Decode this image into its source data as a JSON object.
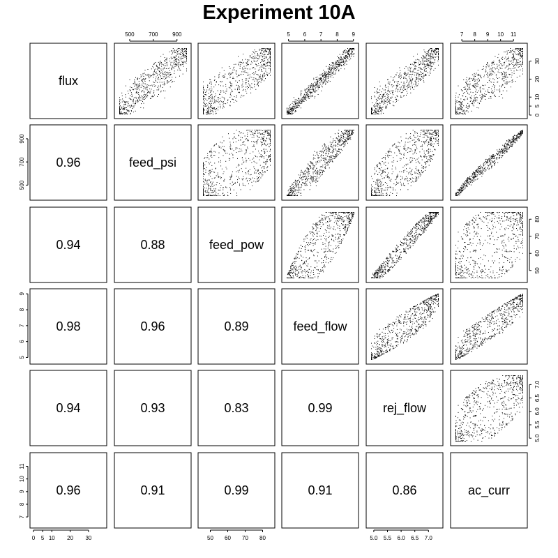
{
  "title": "Experiment 10A",
  "chart_data": {
    "type": "scatter",
    "kind": "scatterplot-matrix",
    "title": "Experiment 10A",
    "grid": false,
    "variables": [
      "flux",
      "feed_psi",
      "feed_pow",
      "feed_flow",
      "rej_flow",
      "ac_curr"
    ],
    "ranges": {
      "flux": [
        0,
        38
      ],
      "feed_psi": [
        400,
        990
      ],
      "feed_pow": [
        45,
        85
      ],
      "feed_flow": [
        4.8,
        9.1
      ],
      "rej_flow": [
        4.85,
        7.4
      ],
      "ac_curr": [
        6.4,
        11.8
      ]
    },
    "ticks": {
      "flux": [
        0,
        5,
        10,
        20,
        30
      ],
      "feed_psi": [
        500,
        700,
        900
      ],
      "feed_pow": [
        50,
        60,
        70,
        80
      ],
      "feed_flow": [
        5,
        6,
        7,
        8,
        9
      ],
      "rej_flow": [
        5.0,
        5.5,
        6.0,
        6.5,
        7.0
      ],
      "ac_curr": [
        7,
        8,
        9,
        10,
        11
      ]
    },
    "tick_labels": {
      "flux": [
        "0",
        "5",
        "10",
        "20",
        "30"
      ],
      "feed_psi": [
        "500",
        "700",
        "900"
      ],
      "feed_pow": [
        "50",
        "60",
        "70",
        "80"
      ],
      "feed_flow": [
        "5",
        "6",
        "7",
        "8",
        "9"
      ],
      "rej_flow": [
        "5.0",
        "5.5",
        "6.0",
        "6.5",
        "7.0"
      ],
      "ac_curr": [
        "7",
        "8",
        "9",
        "10",
        "11"
      ]
    },
    "correlations": [
      {
        "row": "feed_psi",
        "col": "flux",
        "value": "0.96"
      },
      {
        "row": "feed_pow",
        "col": "flux",
        "value": "0.94"
      },
      {
        "row": "feed_pow",
        "col": "feed_psi",
        "value": "0.88"
      },
      {
        "row": "feed_flow",
        "col": "flux",
        "value": "0.98"
      },
      {
        "row": "feed_flow",
        "col": "feed_psi",
        "value": "0.96"
      },
      {
        "row": "feed_flow",
        "col": "feed_pow",
        "value": "0.89"
      },
      {
        "row": "rej_flow",
        "col": "flux",
        "value": "0.94"
      },
      {
        "row": "rej_flow",
        "col": "feed_psi",
        "value": "0.93"
      },
      {
        "row": "rej_flow",
        "col": "feed_pow",
        "value": "0.83"
      },
      {
        "row": "rej_flow",
        "col": "feed_flow",
        "value": "0.99"
      },
      {
        "row": "ac_curr",
        "col": "flux",
        "value": "0.96"
      },
      {
        "row": "ac_curr",
        "col": "feed_psi",
        "value": "0.91"
      },
      {
        "row": "ac_curr",
        "col": "feed_pow",
        "value": "0.99"
      },
      {
        "row": "ac_curr",
        "col": "feed_flow",
        "value": "0.91"
      },
      {
        "row": "ac_curr",
        "col": "rej_flow",
        "value": "0.86"
      }
    ],
    "point_color": "#000000",
    "panel_border_color": "#000000"
  }
}
